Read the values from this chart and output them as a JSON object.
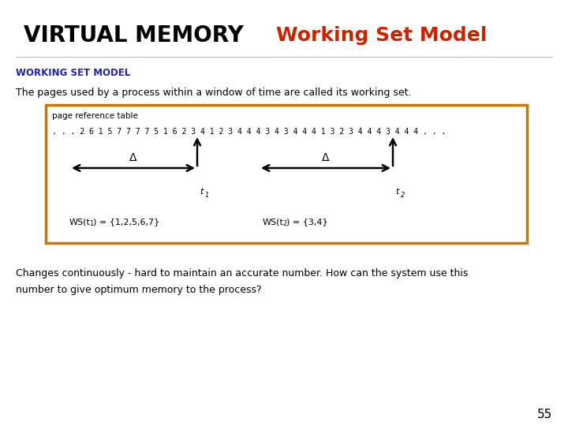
{
  "title_left": "VIRTUAL MEMORY",
  "title_right": "Working Set Model",
  "title_left_color": "#000000",
  "title_right_color": "#cc2200",
  "section_header": "WORKING SET MODEL",
  "section_header_color": "#2222aa",
  "body_text": "The pages used by a process within a window of time are called its working set.",
  "page_ref_label": "page reference table",
  "page_ref_sequence": ". . . 2 6 1 5 7 7 7 7 5 1 6 2 3 4 1 2 3 4 4 4 3 4 3 4 4 4 1 3 2 3 4 4 4 3 4 4 4 . . .",
  "ws1_label": "WS(t",
  "ws1_sub": "1",
  "ws1_end": ") = {1,2,5,6,7}",
  "ws2_label": "WS(t",
  "ws2_sub": "2",
  "ws2_end": ") = {3,4}",
  "t1_label": "t",
  "t1_sub": "1",
  "t2_label": "t",
  "t2_sub": "2",
  "delta_label": "Δ",
  "box_color": "#c87800",
  "changes_text": "Changes continuously - hard to maintain an accurate number. How can the system use this\nnumber to give optimum memory to the process?",
  "page_number": "55",
  "bg_color": "#ffffff"
}
